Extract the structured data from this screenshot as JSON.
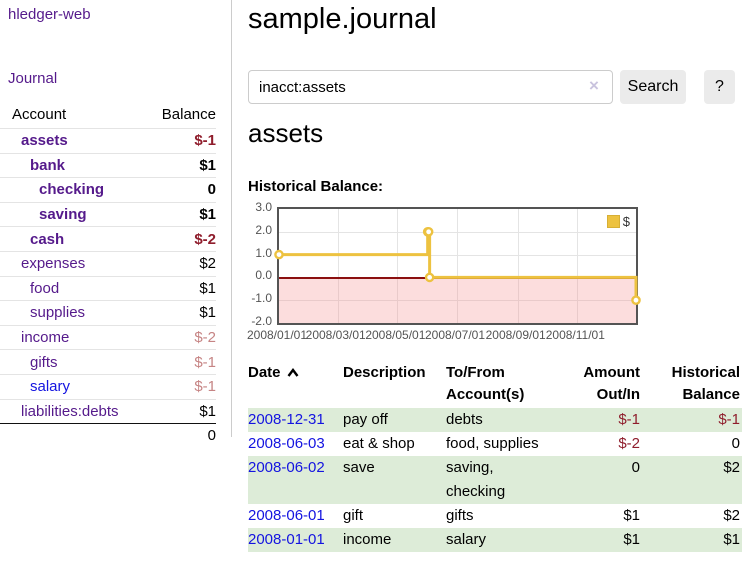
{
  "app": {
    "brand": "hledger-web"
  },
  "sidebar": {
    "journal_link": "Journal",
    "accounts": {
      "col_account": "Account",
      "col_balance": "Balance",
      "rows": [
        {
          "account": "assets",
          "balance": "$-1",
          "indent": 1,
          "bold": true,
          "balance_style": "neg"
        },
        {
          "account": "bank",
          "balance": "$1",
          "indent": 2,
          "bold": true,
          "balance_style": ""
        },
        {
          "account": "checking",
          "balance": "0",
          "indent": 3,
          "bold": true,
          "balance_style": ""
        },
        {
          "account": "saving",
          "balance": "$1",
          "indent": 3,
          "bold": true,
          "balance_style": ""
        },
        {
          "account": "cash",
          "balance": "$-2",
          "indent": 2,
          "bold": true,
          "balance_style": "neg"
        },
        {
          "account": "expenses",
          "balance": "$2",
          "indent": 1,
          "bold": false,
          "balance_style": ""
        },
        {
          "account": "food",
          "balance": "$1",
          "indent": 2,
          "bold": false,
          "balance_style": ""
        },
        {
          "account": "supplies",
          "balance": "$1",
          "indent": 2,
          "bold": false,
          "balance_style": ""
        },
        {
          "account": "income",
          "balance": "$-2",
          "indent": 1,
          "bold": false,
          "balance_style": "negmuted"
        },
        {
          "account": "gifts",
          "balance": "$-1",
          "indent": 2,
          "bold": false,
          "balance_style": "negmuted"
        },
        {
          "account": "salary",
          "balance": "$-1",
          "indent": 2,
          "bold": false,
          "balance_style": "negmuted",
          "blue": true
        },
        {
          "account": "liabilities:debts",
          "balance": "$1",
          "indent": 1,
          "bold": false,
          "balance_style": ""
        }
      ],
      "total": "0"
    }
  },
  "header": {
    "title": "sample.journal"
  },
  "search": {
    "value": "inacct:assets",
    "clear_icon": "×",
    "search_button": "Search",
    "help_button": "?"
  },
  "account_page": {
    "heading": "assets",
    "chart_label": "Historical Balance:"
  },
  "chart_data": {
    "type": "line",
    "title": "Historical Balance:",
    "step": true,
    "series": [
      {
        "name": "$",
        "color": "#edc240",
        "points": [
          [
            "2008-01-01",
            1
          ],
          [
            "2008-06-01",
            2
          ],
          [
            "2008-06-02",
            2
          ],
          [
            "2008-06-03",
            0
          ],
          [
            "2008-12-31",
            -1
          ]
        ]
      }
    ],
    "xrange": [
      "2008-01-01",
      "2008-12-31"
    ],
    "xticks": [
      "2008/01/01",
      "2008/03/01",
      "2008/05/01",
      "2008/07/01",
      "2008/09/01",
      "2008/11/01"
    ],
    "yticks": [
      "3.0",
      "2.0",
      "1.0",
      "0.0",
      "-1.0",
      "-2.0"
    ],
    "ylim": [
      -2,
      3
    ],
    "grid": true,
    "legend_position": "top-right",
    "zero_line_color": "#8b0f0f",
    "negative_region": true
  },
  "register": {
    "headers": [
      "Date",
      "Description",
      "To/From Account(s)",
      "Amount Out/In",
      "Historical Balance"
    ],
    "sort_column": "Date",
    "sort_direction": "ascending",
    "rows": [
      {
        "date": "2008-12-31",
        "description": "pay off",
        "accounts": "debts",
        "amount": "$-1",
        "balance": "$-1"
      },
      {
        "date": "2008-06-03",
        "description": "eat & shop",
        "accounts": "food, supplies",
        "amount": "$-2",
        "balance": "0"
      },
      {
        "date": "2008-06-02",
        "description": "save",
        "accounts": "saving, checking",
        "amount": "0",
        "balance": "$2"
      },
      {
        "date": "2008-06-01",
        "description": "gift",
        "accounts": "gifts",
        "amount": "$1",
        "balance": "$2"
      },
      {
        "date": "2008-01-01",
        "description": "income",
        "accounts": "salary",
        "amount": "$1",
        "balance": "$1"
      }
    ]
  },
  "colors": {
    "link_purple": "#551a8b",
    "link_blue": "#1414e0",
    "negative": "#8f1d2c",
    "negative_muted": "#c68484",
    "row_stripe_green": "#ddecd8",
    "series_yellow": "#edc240"
  }
}
